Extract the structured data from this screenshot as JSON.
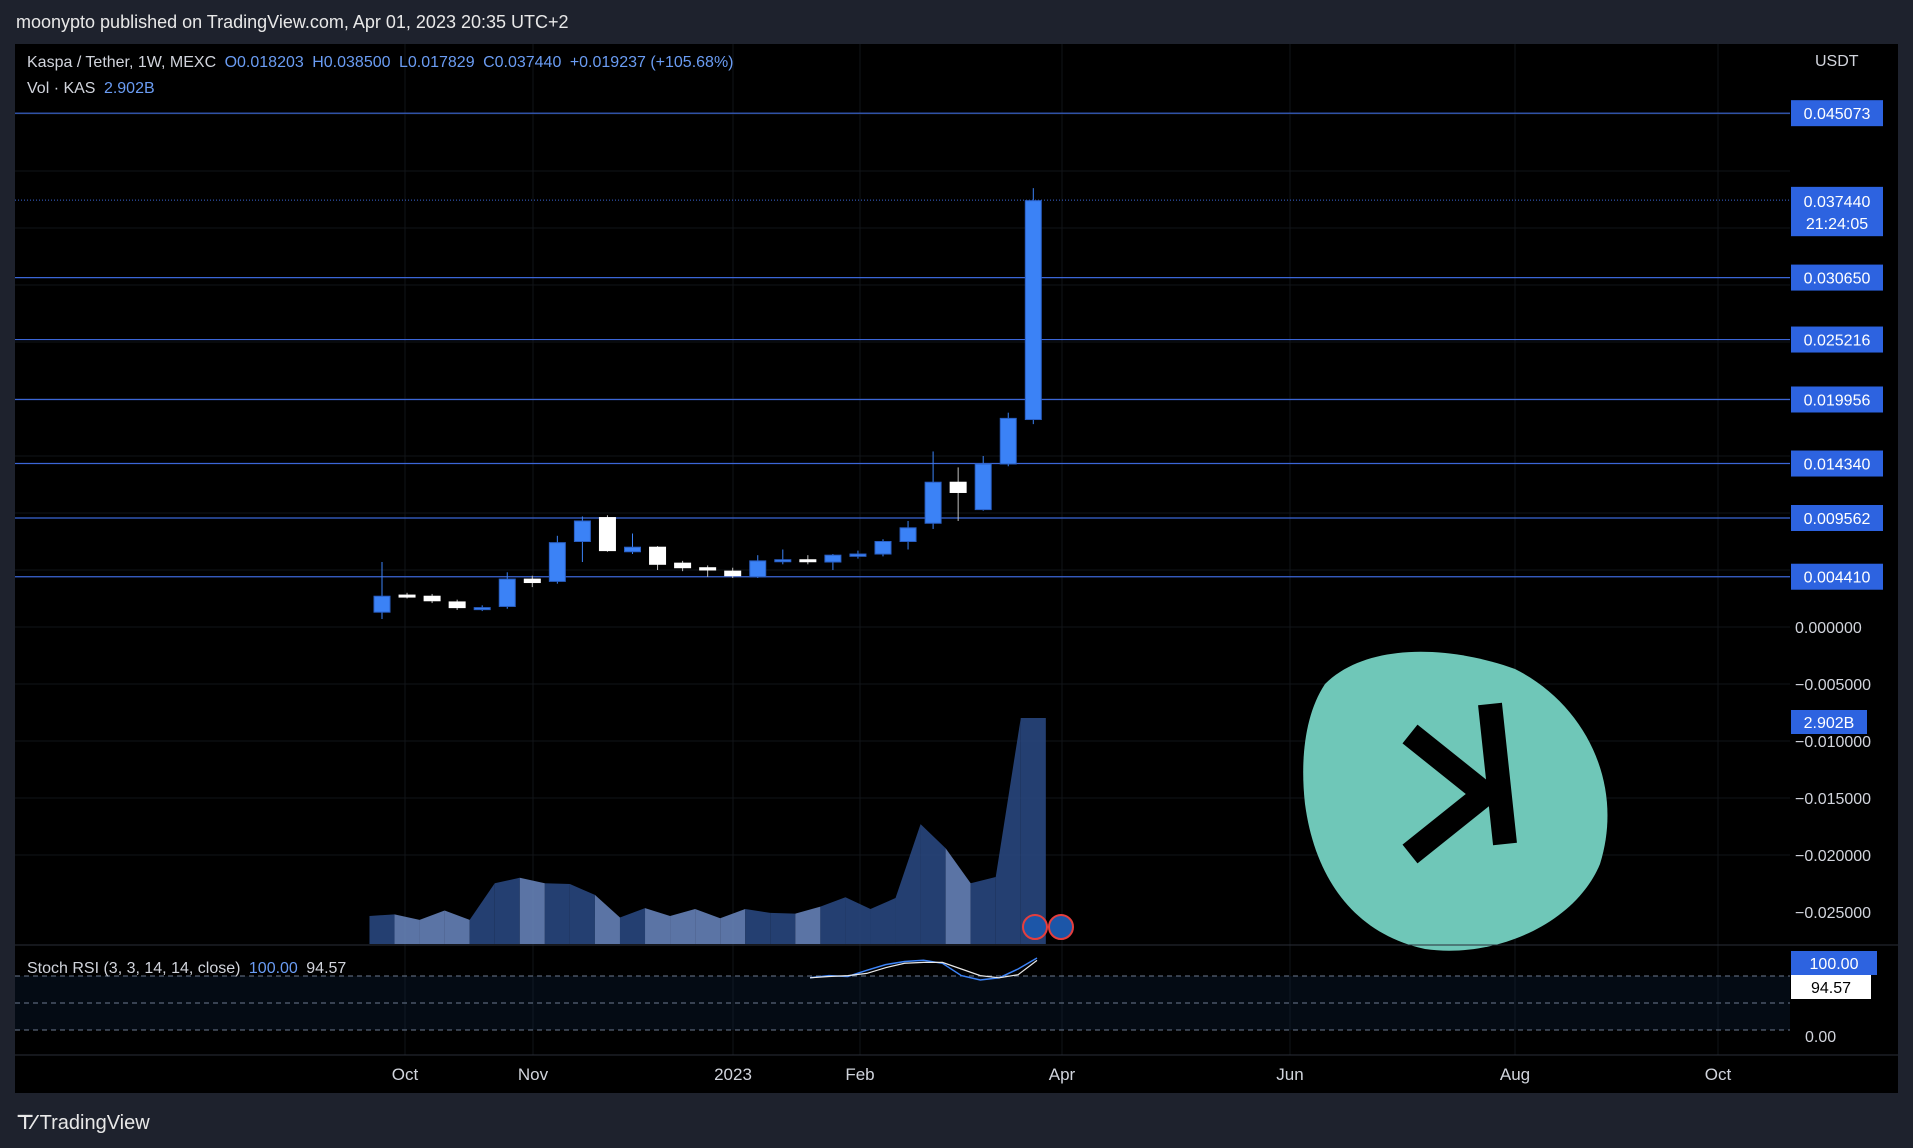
{
  "header": {
    "published_text": "moonypto published on TradingView.com, Apr 01, 2023 20:35 UTC+2"
  },
  "legend": {
    "symbol": "Kaspa / Tether, 1W, MEXC",
    "open": "O0.018203",
    "high": "H0.038500",
    "low": "L0.017829",
    "close": "C0.037440",
    "change": "+0.019237 (+105.68%)",
    "volume_label": "Vol · KAS",
    "volume_value": "2.902B",
    "indicator_label": "Stoch RSI (3, 3, 14, 14, close)",
    "indicator_k": "100.00",
    "indicator_d": "94.57"
  },
  "footer": {
    "logo_text": "TradingView"
  },
  "chart_data": {
    "type": "candlestick",
    "currency_label": "USDT",
    "x_ticks": [
      "Oct",
      "Nov",
      "2023",
      "Feb",
      "Apr",
      "Jun",
      "Aug",
      "Oct"
    ],
    "y_ticks": [
      "0.000000",
      "−0.005000",
      "−0.010000",
      "−0.015000",
      "−0.020000",
      "−0.025000"
    ],
    "horizontal_levels": [
      0.045073,
      0.03065,
      0.025216,
      0.019956,
      0.01434,
      0.009562,
      0.00441
    ],
    "price_labels": {
      "high_marker": "0.037732",
      "last_price": "0.037440",
      "countdown": "21:24:05",
      "volume": "2.902B"
    },
    "candles": [
      {
        "o": 0.0013,
        "h": 0.0057,
        "l": 0.0007,
        "c": 0.0027
      },
      {
        "o": 0.0028,
        "h": 0.003,
        "l": 0.0025,
        "c": 0.0027
      },
      {
        "o": 0.0027,
        "h": 0.0029,
        "l": 0.0021,
        "c": 0.0023
      },
      {
        "o": 0.0022,
        "h": 0.0024,
        "l": 0.0015,
        "c": 0.0017
      },
      {
        "o": 0.0016,
        "h": 0.0019,
        "l": 0.0014,
        "c": 0.0017
      },
      {
        "o": 0.0018,
        "h": 0.0048,
        "l": 0.0016,
        "c": 0.0042
      },
      {
        "o": 0.0042,
        "h": 0.0045,
        "l": 0.0035,
        "c": 0.0039
      },
      {
        "o": 0.004,
        "h": 0.008,
        "l": 0.0038,
        "c": 0.0074
      },
      {
        "o": 0.0075,
        "h": 0.0097,
        "l": 0.0057,
        "c": 0.0093
      },
      {
        "o": 0.0096,
        "h": 0.0098,
        "l": 0.0066,
        "c": 0.0067
      },
      {
        "o": 0.0066,
        "h": 0.0082,
        "l": 0.0064,
        "c": 0.007
      },
      {
        "o": 0.007,
        "h": 0.0071,
        "l": 0.005,
        "c": 0.0055
      },
      {
        "o": 0.0056,
        "h": 0.0058,
        "l": 0.0049,
        "c": 0.0052
      },
      {
        "o": 0.0052,
        "h": 0.0054,
        "l": 0.0044,
        "c": 0.005
      },
      {
        "o": 0.0049,
        "h": 0.0052,
        "l": 0.0043,
        "c": 0.0045
      },
      {
        "o": 0.0044,
        "h": 0.0063,
        "l": 0.0043,
        "c": 0.0058
      },
      {
        "o": 0.0058,
        "h": 0.0068,
        "l": 0.0055,
        "c": 0.0059
      },
      {
        "o": 0.0059,
        "h": 0.0063,
        "l": 0.0055,
        "c": 0.0058
      },
      {
        "o": 0.0057,
        "h": 0.0064,
        "l": 0.005,
        "c": 0.0063
      },
      {
        "o": 0.0062,
        "h": 0.0067,
        "l": 0.006,
        "c": 0.0064
      },
      {
        "o": 0.0064,
        "h": 0.0077,
        "l": 0.0062,
        "c": 0.0075
      },
      {
        "o": 0.0075,
        "h": 0.0093,
        "l": 0.0068,
        "c": 0.0087
      },
      {
        "o": 0.0091,
        "h": 0.0154,
        "l": 0.0086,
        "c": 0.0127
      },
      {
        "o": 0.0127,
        "h": 0.014,
        "l": 0.0093,
        "c": 0.0118
      },
      {
        "o": 0.0103,
        "h": 0.015,
        "l": 0.0102,
        "c": 0.0143
      },
      {
        "o": 0.0143,
        "h": 0.0188,
        "l": 0.0141,
        "c": 0.0183
      },
      {
        "o": 0.0182,
        "h": 0.0385,
        "l": 0.0178,
        "c": 0.0374
      }
    ],
    "volume": [
      0.36,
      0.38,
      0.31,
      0.43,
      0.31,
      0.78,
      0.85,
      0.78,
      0.77,
      0.63,
      0.34,
      0.46,
      0.36,
      0.45,
      0.33,
      0.45,
      0.4,
      0.39,
      0.48,
      0.6,
      0.45,
      0.59,
      1.54,
      1.23,
      0.78,
      0.86,
      2.902
    ],
    "stoch_rsi": {
      "k": [
        0.55,
        0.6,
        0.58,
        0.72,
        0.85,
        0.92,
        0.95,
        0.88,
        0.6,
        0.5,
        0.55,
        0.75,
        1.0
      ],
      "d": [
        0.55,
        0.58,
        0.6,
        0.65,
        0.78,
        0.88,
        0.9,
        0.9,
        0.75,
        0.6,
        0.55,
        0.62,
        0.9457
      ]
    },
    "stoch_ticks": [
      "100.00",
      "94.57",
      "0.00"
    ]
  }
}
